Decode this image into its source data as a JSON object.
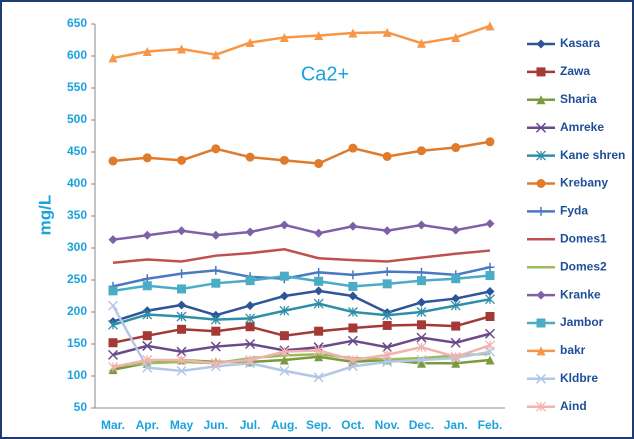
{
  "chart_data": {
    "type": "line",
    "annotation": "Ca2+",
    "y_label": "mg/L",
    "categories": [
      "Mar.",
      "Apr.",
      "May",
      "Jun.",
      "Jul.",
      "Aug.",
      "Sep.",
      "Oct.",
      "Nov.",
      "Dec.",
      "Jan.",
      "Feb."
    ],
    "ylim": [
      50,
      650
    ],
    "yticks": [
      50,
      100,
      150,
      200,
      250,
      300,
      350,
      400,
      450,
      500,
      550,
      600,
      650
    ],
    "grid": false,
    "legend": "right",
    "series": [
      {
        "name": "Kasara",
        "color": "#2e5597",
        "marker": "diamond",
        "values": [
          185,
          202,
          211,
          195,
          210,
          225,
          233,
          225,
          199,
          215,
          221,
          232
        ]
      },
      {
        "name": "Zawa",
        "color": "#a33a35",
        "marker": "square",
        "values": [
          152,
          163,
          173,
          170,
          177,
          163,
          170,
          175,
          179,
          180,
          178,
          193
        ]
      },
      {
        "name": "Sharia",
        "color": "#7a9a3c",
        "marker": "triangle",
        "values": [
          110,
          120,
          125,
          122,
          122,
          125,
          130,
          122,
          125,
          120,
          120,
          125
        ]
      },
      {
        "name": "Amreke",
        "color": "#6a4b8a",
        "marker": "x",
        "values": [
          133,
          147,
          138,
          146,
          150,
          140,
          145,
          155,
          145,
          160,
          152,
          166
        ]
      },
      {
        "name": "Kane shren",
        "color": "#2f8fa8",
        "marker": "asterisk",
        "values": [
          180,
          196,
          193,
          188,
          190,
          202,
          213,
          200,
          195,
          200,
          210,
          220
        ]
      },
      {
        "name": "Krebany",
        "color": "#e07b2b",
        "marker": "circle",
        "values": [
          436,
          441,
          437,
          455,
          442,
          437,
          432,
          456,
          443,
          452,
          457,
          466
        ]
      },
      {
        "name": "Fyda",
        "color": "#4a78c2",
        "marker": "plus",
        "values": [
          240,
          252,
          260,
          265,
          255,
          252,
          262,
          258,
          263,
          262,
          258,
          270
        ]
      },
      {
        "name": "Domes1",
        "color": "#c0504d",
        "marker": "none",
        "values": [
          277,
          282,
          279,
          288,
          292,
          298,
          284,
          281,
          279,
          285,
          291,
          296
        ]
      },
      {
        "name": "Domes2",
        "color": "#9bbb59",
        "marker": "none",
        "values": [
          115,
          120,
          122,
          120,
          128,
          132,
          134,
          128,
          126,
          128,
          132,
          135
        ]
      },
      {
        "name": "Kranke",
        "color": "#7f60a8",
        "marker": "diamond",
        "values": [
          313,
          320,
          327,
          320,
          325,
          336,
          323,
          334,
          327,
          336,
          328,
          338
        ]
      },
      {
        "name": "Jambor",
        "color": "#4bacc6",
        "marker": "square",
        "values": [
          233,
          241,
          236,
          245,
          249,
          256,
          248,
          240,
          244,
          249,
          252,
          257
        ]
      },
      {
        "name": "bakr",
        "color": "#f79646",
        "marker": "triangle",
        "values": [
          597,
          607,
          611,
          602,
          621,
          629,
          632,
          636,
          637,
          620,
          629,
          647
        ]
      },
      {
        "name": "Kldbre",
        "color": "#b3c7e6",
        "marker": "x",
        "values": [
          210,
          113,
          108,
          115,
          120,
          108,
          98,
          115,
          122,
          125,
          128,
          138
        ]
      },
      {
        "name": "Aind",
        "color": "#f2b3b0",
        "marker": "asterisk",
        "values": [
          114,
          125,
          125,
          120,
          125,
          138,
          140,
          125,
          133,
          145,
          130,
          148
        ]
      }
    ]
  }
}
